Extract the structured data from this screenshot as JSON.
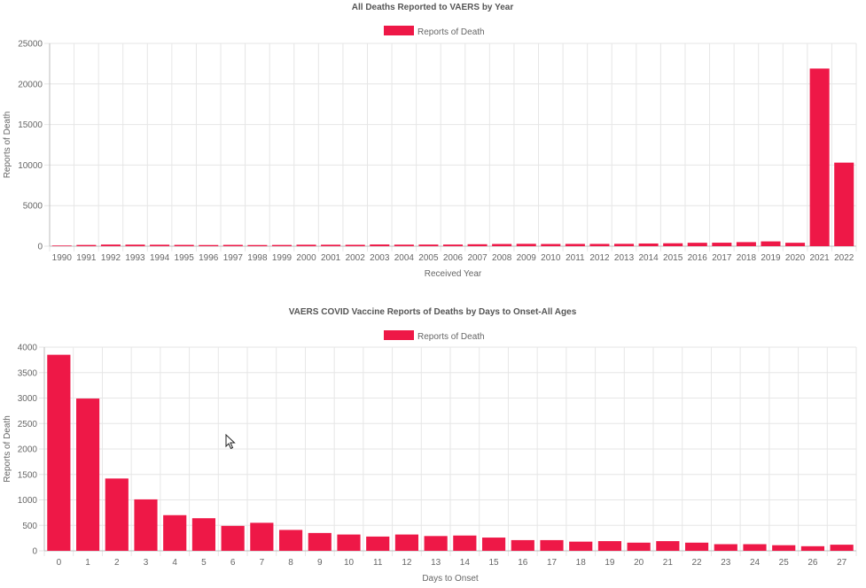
{
  "bar_color": "#ee1847",
  "chart_data": [
    {
      "type": "bar",
      "title": "All Deaths Reported to VAERS by Year",
      "legend": "Reports of Death",
      "xlabel": "Received Year",
      "ylabel": "Reports of Death",
      "ylim": [
        0,
        25000
      ],
      "yticks": [
        0,
        5000,
        10000,
        15000,
        20000,
        25000
      ],
      "grid": true,
      "legend_position": "top",
      "categories": [
        "1990",
        "1991",
        "1992",
        "1993",
        "1994",
        "1995",
        "1996",
        "1997",
        "1998",
        "1999",
        "2000",
        "2001",
        "2002",
        "2003",
        "2004",
        "2005",
        "2006",
        "2007",
        "2008",
        "2009",
        "2010",
        "2011",
        "2012",
        "2013",
        "2014",
        "2015",
        "2016",
        "2017",
        "2018",
        "2019",
        "2020",
        "2021",
        "2022"
      ],
      "values": [
        80,
        150,
        200,
        190,
        180,
        160,
        140,
        160,
        140,
        150,
        180,
        180,
        170,
        210,
        190,
        200,
        200,
        240,
        270,
        290,
        270,
        280,
        280,
        290,
        330,
        360,
        420,
        430,
        500,
        590,
        420,
        21900,
        10300
      ]
    },
    {
      "type": "bar",
      "title": "VAERS COVID Vaccine Reports of Deaths by Days to Onset-All Ages",
      "legend": "Reports of Death",
      "xlabel": "Days to Onset",
      "ylabel": "Reports of Death",
      "ylim": [
        0,
        4000
      ],
      "yticks": [
        0,
        500,
        1000,
        1500,
        2000,
        2500,
        3000,
        3500,
        4000
      ],
      "grid": true,
      "legend_position": "top",
      "categories": [
        "0",
        "1",
        "2",
        "3",
        "4",
        "5",
        "6",
        "7",
        "8",
        "9",
        "10",
        "11",
        "12",
        "13",
        "14",
        "15",
        "16",
        "17",
        "18",
        "19",
        "20",
        "21",
        "22",
        "23",
        "24",
        "25",
        "26",
        "27"
      ],
      "values": [
        3850,
        2990,
        1420,
        1010,
        700,
        640,
        490,
        550,
        410,
        350,
        320,
        280,
        320,
        290,
        300,
        260,
        210,
        210,
        180,
        190,
        160,
        190,
        160,
        130,
        130,
        110,
        90,
        120
      ]
    }
  ]
}
